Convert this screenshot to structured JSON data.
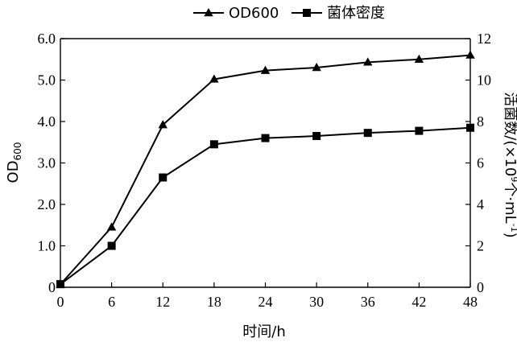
{
  "chart_data": {
    "type": "line",
    "x": [
      0,
      6,
      12,
      18,
      24,
      30,
      36,
      42,
      48
    ],
    "xlabel": "时间/h",
    "xlim": [
      0,
      48
    ],
    "xticks": [
      "0",
      "6",
      "12",
      "18",
      "24",
      "30",
      "36",
      "42",
      "48"
    ],
    "ylabel_left": "OD",
    "ylabel_left_sub": "600",
    "ylim_left": [
      0,
      6
    ],
    "yticks_left": [
      "0",
      "1.0",
      "2.0",
      "3.0",
      "4.0",
      "5.0",
      "6.0"
    ],
    "ylabel_right_prefix": "活菌数/(×10",
    "ylabel_right_sup": "9",
    "ylabel_right_mid": "个·mL",
    "ylabel_right_sup2": "-1",
    "ylabel_right_suffix": ")",
    "ylim_right": [
      0,
      12
    ],
    "yticks_right": [
      "0",
      "2",
      "4",
      "6",
      "8",
      "10",
      "12"
    ],
    "legend_position": "top-center",
    "grid": false,
    "series": [
      {
        "name": "OD600",
        "axis": "left",
        "marker": "triangle",
        "color": "#000000",
        "values": [
          0.07,
          1.45,
          3.92,
          5.02,
          5.23,
          5.3,
          5.43,
          5.5,
          5.6
        ]
      },
      {
        "name": "菌体密度",
        "axis": "right",
        "marker": "square",
        "color": "#000000",
        "values": [
          0.15,
          2.0,
          5.3,
          6.9,
          7.2,
          7.3,
          7.45,
          7.55,
          7.7
        ]
      }
    ]
  }
}
